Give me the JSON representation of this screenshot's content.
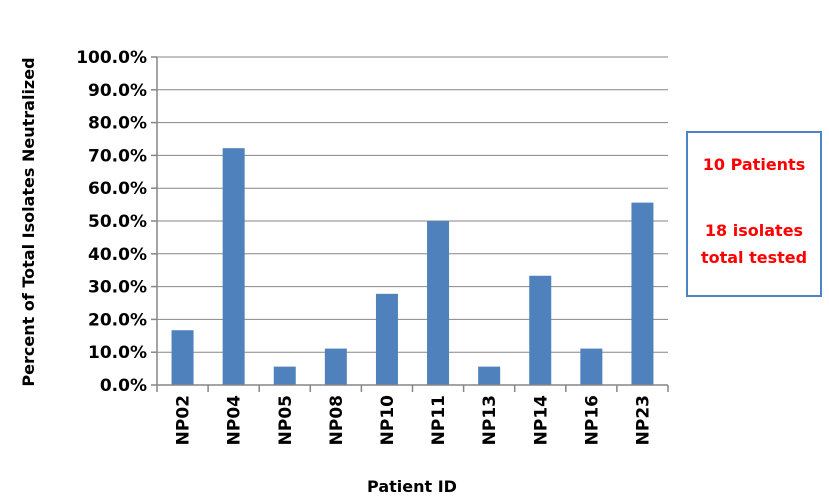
{
  "chart_data": {
    "type": "bar",
    "title": "",
    "xlabel": "Patient ID",
    "ylabel": "Percent of Total Isolates Neutralized",
    "ylim": [
      0,
      100
    ],
    "yticks": [
      "0.0%",
      "10.0%",
      "20.0%",
      "30.0%",
      "40.0%",
      "50.0%",
      "60.0%",
      "70.0%",
      "80.0%",
      "90.0%",
      "100.0%"
    ],
    "categories": [
      "NP02",
      "NP04",
      "NP05",
      "NP08",
      "NP10",
      "NP11",
      "NP13",
      "NP14",
      "NP16",
      "NP23"
    ],
    "values": [
      16.7,
      72.2,
      5.6,
      11.1,
      27.8,
      50.0,
      5.6,
      33.3,
      11.1,
      55.6
    ],
    "grid": true,
    "bar_color": "#4f81bd"
  },
  "annotation": {
    "line1": "10 Patients",
    "line2": "18 isolates",
    "line3": "total tested",
    "border_color": "#4a86c5",
    "text_color": "#ff0000"
  }
}
